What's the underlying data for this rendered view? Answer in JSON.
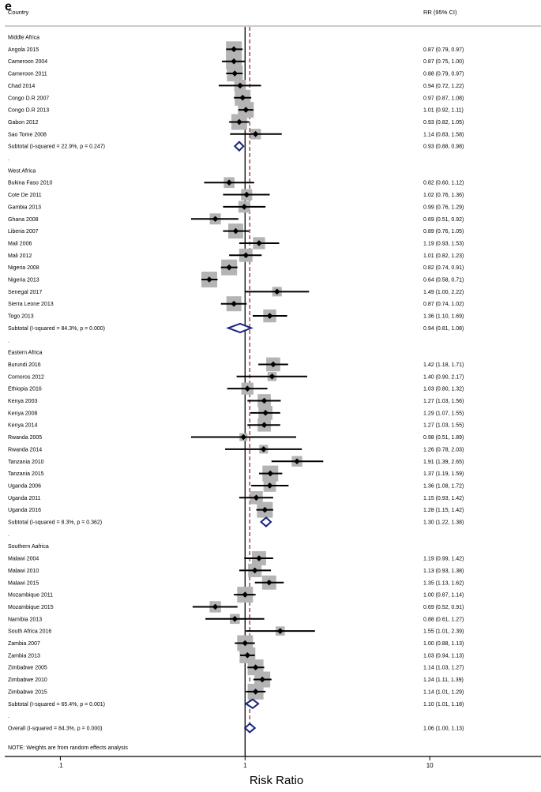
{
  "panel_label": "e",
  "header": {
    "country": "Country",
    "rr": "RR (95% CI)"
  },
  "chart_data": {
    "type": "forest",
    "xlabel": "Risk Ratio",
    "xscale": "log",
    "xlim": [
      0.05,
      40
    ],
    "ticks": [
      {
        "value": 0.1,
        "label": ".1"
      },
      {
        "value": 1,
        "label": "1"
      },
      {
        "value": 10,
        "label": "10"
      }
    ],
    "null_line": 1,
    "overall_line": 1.06,
    "colors": {
      "marker": "#000000",
      "box": "#b4b4b4",
      "diamond": "#1a237e",
      "overall_line": "#8b1a1a"
    },
    "rows": [
      {
        "type": "group",
        "label": "Middle Africa"
      },
      {
        "type": "study",
        "label": "Angola 2015",
        "rr": 0.87,
        "lo": 0.79,
        "hi": 0.97,
        "text": "0.87 (0.79, 0.97)"
      },
      {
        "type": "study",
        "label": "Cameroon 2004",
        "rr": 0.87,
        "lo": 0.75,
        "hi": 1.0,
        "text": "0.87 (0.75, 1.00)"
      },
      {
        "type": "study",
        "label": "Cameroon 2011",
        "rr": 0.88,
        "lo": 0.79,
        "hi": 0.97,
        "text": "0.88 (0.79, 0.97)"
      },
      {
        "type": "study",
        "label": "Chad 2014",
        "rr": 0.94,
        "lo": 0.72,
        "hi": 1.22,
        "text": "0.94 (0.72, 1.22)"
      },
      {
        "type": "study",
        "label": "Congo  D.R 2007",
        "rr": 0.97,
        "lo": 0.87,
        "hi": 1.08,
        "text": "0.97 (0.87, 1.08)"
      },
      {
        "type": "study",
        "label": "Congo  D.R 2013",
        "rr": 1.01,
        "lo": 0.92,
        "hi": 1.11,
        "text": "1.01 (0.92, 1.11)"
      },
      {
        "type": "study",
        "label": "Gabon 2012",
        "rr": 0.93,
        "lo": 0.82,
        "hi": 1.05,
        "text": "0.93 (0.82, 1.05)"
      },
      {
        "type": "study",
        "label": "Sao Tome 2008",
        "rr": 1.14,
        "lo": 0.83,
        "hi": 1.58,
        "text": "1.14 (0.83, 1.58)"
      },
      {
        "type": "subtotal",
        "label": "Subtotal  (I-squared = 22.9%, p = 0.247)",
        "rr": 0.93,
        "lo": 0.88,
        "hi": 0.98,
        "text": "0.93 (0.88, 0.98)"
      },
      {
        "type": "dot",
        "label": "."
      },
      {
        "type": "group",
        "label": "West Africa"
      },
      {
        "type": "study",
        "label": "Bukina Faso 2010",
        "rr": 0.82,
        "lo": 0.6,
        "hi": 1.12,
        "text": "0.82 (0.60, 1.12)"
      },
      {
        "type": "study",
        "label": "Cote De 2011",
        "rr": 1.02,
        "lo": 0.76,
        "hi": 1.36,
        "text": "1.02 (0.76, 1.36)"
      },
      {
        "type": "study",
        "label": "Gambia 2013",
        "rr": 0.99,
        "lo": 0.76,
        "hi": 1.29,
        "text": "0.99 (0.76, 1.29)"
      },
      {
        "type": "study",
        "label": "Ghana 2008",
        "rr": 0.69,
        "lo": 0.51,
        "hi": 0.92,
        "text": "0.69 (0.51, 0.92)"
      },
      {
        "type": "study",
        "label": "Liberia 2007",
        "rr": 0.89,
        "lo": 0.76,
        "hi": 1.05,
        "text": "0.89 (0.76, 1.05)"
      },
      {
        "type": "study",
        "label": "Mali 2006",
        "rr": 1.19,
        "lo": 0.93,
        "hi": 1.53,
        "text": "1.19 (0.93, 1.53)"
      },
      {
        "type": "study",
        "label": "Mali 2012",
        "rr": 1.01,
        "lo": 0.82,
        "hi": 1.23,
        "text": "1.01 (0.82, 1.23)"
      },
      {
        "type": "study",
        "label": "Nigeria 2008",
        "rr": 0.82,
        "lo": 0.74,
        "hi": 0.91,
        "text": "0.82 (0.74, 0.91)"
      },
      {
        "type": "study",
        "label": "Nigeria 2013",
        "rr": 0.64,
        "lo": 0.58,
        "hi": 0.71,
        "text": "0.64 (0.58, 0.71)"
      },
      {
        "type": "study",
        "label": "Senegal 2017",
        "rr": 1.49,
        "lo": 1.0,
        "hi": 2.22,
        "text": "1.49 (1.00, 2.22)"
      },
      {
        "type": "study",
        "label": "Sierra Leone 2013",
        "rr": 0.87,
        "lo": 0.74,
        "hi": 1.02,
        "text": "0.87 (0.74, 1.02)"
      },
      {
        "type": "study",
        "label": "Togo 2013",
        "rr": 1.36,
        "lo": 1.1,
        "hi": 1.69,
        "text": "1.36 (1.10, 1.69)"
      },
      {
        "type": "subtotal",
        "label": "Subtotal  (I-squared = 84.3%, p = 0.000)",
        "rr": 0.94,
        "lo": 0.81,
        "hi": 1.08,
        "text": "0.94 (0.81, 1.08)"
      },
      {
        "type": "dot",
        "label": "."
      },
      {
        "type": "group",
        "label": "Eastern Africa"
      },
      {
        "type": "study",
        "label": "Burundi 2016",
        "rr": 1.42,
        "lo": 1.18,
        "hi": 1.71,
        "text": "1.42 (1.18, 1.71)"
      },
      {
        "type": "study",
        "label": "Comoros 2012",
        "rr": 1.4,
        "lo": 0.9,
        "hi": 2.17,
        "text": "1.40 (0.90, 2.17)"
      },
      {
        "type": "study",
        "label": "Ethiopia 2016",
        "rr": 1.03,
        "lo": 0.8,
        "hi": 1.32,
        "text": "1.03 (0.80, 1.32)"
      },
      {
        "type": "study",
        "label": "Kenya 2003",
        "rr": 1.27,
        "lo": 1.03,
        "hi": 1.56,
        "text": "1.27 (1.03, 1.56)"
      },
      {
        "type": "study",
        "label": "Kenya 2008",
        "rr": 1.29,
        "lo": 1.07,
        "hi": 1.55,
        "text": "1.29 (1.07, 1.55)"
      },
      {
        "type": "study",
        "label": "Kenya 2014",
        "rr": 1.27,
        "lo": 1.03,
        "hi": 1.55,
        "text": "1.27 (1.03, 1.55)"
      },
      {
        "type": "study",
        "label": "Rwanda 2005",
        "rr": 0.98,
        "lo": 0.51,
        "hi": 1.89,
        "text": "0.98 (0.51, 1.89)"
      },
      {
        "type": "study",
        "label": "Rwanda 2014",
        "rr": 1.26,
        "lo": 0.78,
        "hi": 2.03,
        "text": "1.26 (0.78, 2.03)"
      },
      {
        "type": "study",
        "label": "Tanzania 2010",
        "rr": 1.91,
        "lo": 1.39,
        "hi": 2.65,
        "text": "1.91 (1.39, 2.65)"
      },
      {
        "type": "study",
        "label": "Tanzania 2015",
        "rr": 1.37,
        "lo": 1.19,
        "hi": 1.59,
        "text": "1.37 (1.19, 1.59)"
      },
      {
        "type": "study",
        "label": "Uganda 2006",
        "rr": 1.36,
        "lo": 1.08,
        "hi": 1.72,
        "text": "1.36 (1.08, 1.72)"
      },
      {
        "type": "study",
        "label": "Uganda 2011",
        "rr": 1.15,
        "lo": 0.93,
        "hi": 1.42,
        "text": "1.15 (0.93, 1.42)"
      },
      {
        "type": "study",
        "label": "Uganda 2016",
        "rr": 1.28,
        "lo": 1.15,
        "hi": 1.42,
        "text": "1.28 (1.15, 1.42)"
      },
      {
        "type": "subtotal",
        "label": "Subtotal  (I-squared = 8.3%, p = 0.362)",
        "rr": 1.3,
        "lo": 1.22,
        "hi": 1.38,
        "text": "1.30 (1.22, 1.38)"
      },
      {
        "type": "dot",
        "label": "."
      },
      {
        "type": "group",
        "label": "Southern Aafrica"
      },
      {
        "type": "study",
        "label": "Malawi 2004",
        "rr": 1.19,
        "lo": 0.99,
        "hi": 1.42,
        "text": "1.19 (0.99, 1.42)"
      },
      {
        "type": "study",
        "label": "Malawi 2010",
        "rr": 1.13,
        "lo": 0.93,
        "hi": 1.38,
        "text": "1.13 (0.93, 1.38)"
      },
      {
        "type": "study",
        "label": "Malawi 2015",
        "rr": 1.35,
        "lo": 1.13,
        "hi": 1.62,
        "text": "1.35 (1.13, 1.62)"
      },
      {
        "type": "study",
        "label": "Mozambique 2011",
        "rr": 1.0,
        "lo": 0.87,
        "hi": 1.14,
        "text": "1.00 (0.87, 1.14)"
      },
      {
        "type": "study",
        "label": "Mozambique 2015",
        "rr": 0.69,
        "lo": 0.52,
        "hi": 0.91,
        "text": "0.69 (0.52, 0.91)"
      },
      {
        "type": "study",
        "label": "Namibia 2013",
        "rr": 0.88,
        "lo": 0.61,
        "hi": 1.27,
        "text": "0.88 (0.61, 1.27)"
      },
      {
        "type": "study",
        "label": "South Africa 2016",
        "rr": 1.55,
        "lo": 1.01,
        "hi": 2.39,
        "text": "1.55 (1.01, 2.39)"
      },
      {
        "type": "study",
        "label": "Zambia 2007",
        "rr": 1.0,
        "lo": 0.88,
        "hi": 1.13,
        "text": "1.00 (0.88, 1.13)"
      },
      {
        "type": "study",
        "label": "Zambia 2013",
        "rr": 1.03,
        "lo": 0.94,
        "hi": 1.13,
        "text": "1.03 (0.94, 1.13)"
      },
      {
        "type": "study",
        "label": "Zimbabwe 2005",
        "rr": 1.14,
        "lo": 1.03,
        "hi": 1.27,
        "text": "1.14 (1.03, 1.27)"
      },
      {
        "type": "study",
        "label": "Zimbabwe 2010",
        "rr": 1.24,
        "lo": 1.11,
        "hi": 1.39,
        "text": "1.24 (1.11, 1.39)"
      },
      {
        "type": "study",
        "label": "Zimbabwe 2015",
        "rr": 1.14,
        "lo": 1.01,
        "hi": 1.29,
        "text": "1.14 (1.01, 1.29)"
      },
      {
        "type": "subtotal",
        "label": "Subtotal  (I-squared = 65.4%, p = 0.001)",
        "rr": 1.1,
        "lo": 1.01,
        "hi": 1.18,
        "text": "1.10 (1.01, 1.18)"
      },
      {
        "type": "dot",
        "label": "."
      },
      {
        "type": "overall",
        "label": "Overall  (I-squared = 84.3%, p = 0.000)",
        "rr": 1.06,
        "lo": 1.0,
        "hi": 1.13,
        "text": "1.06 (1.00, 1.13)"
      }
    ],
    "note": "NOTE: Weights are from random effects analysis"
  }
}
